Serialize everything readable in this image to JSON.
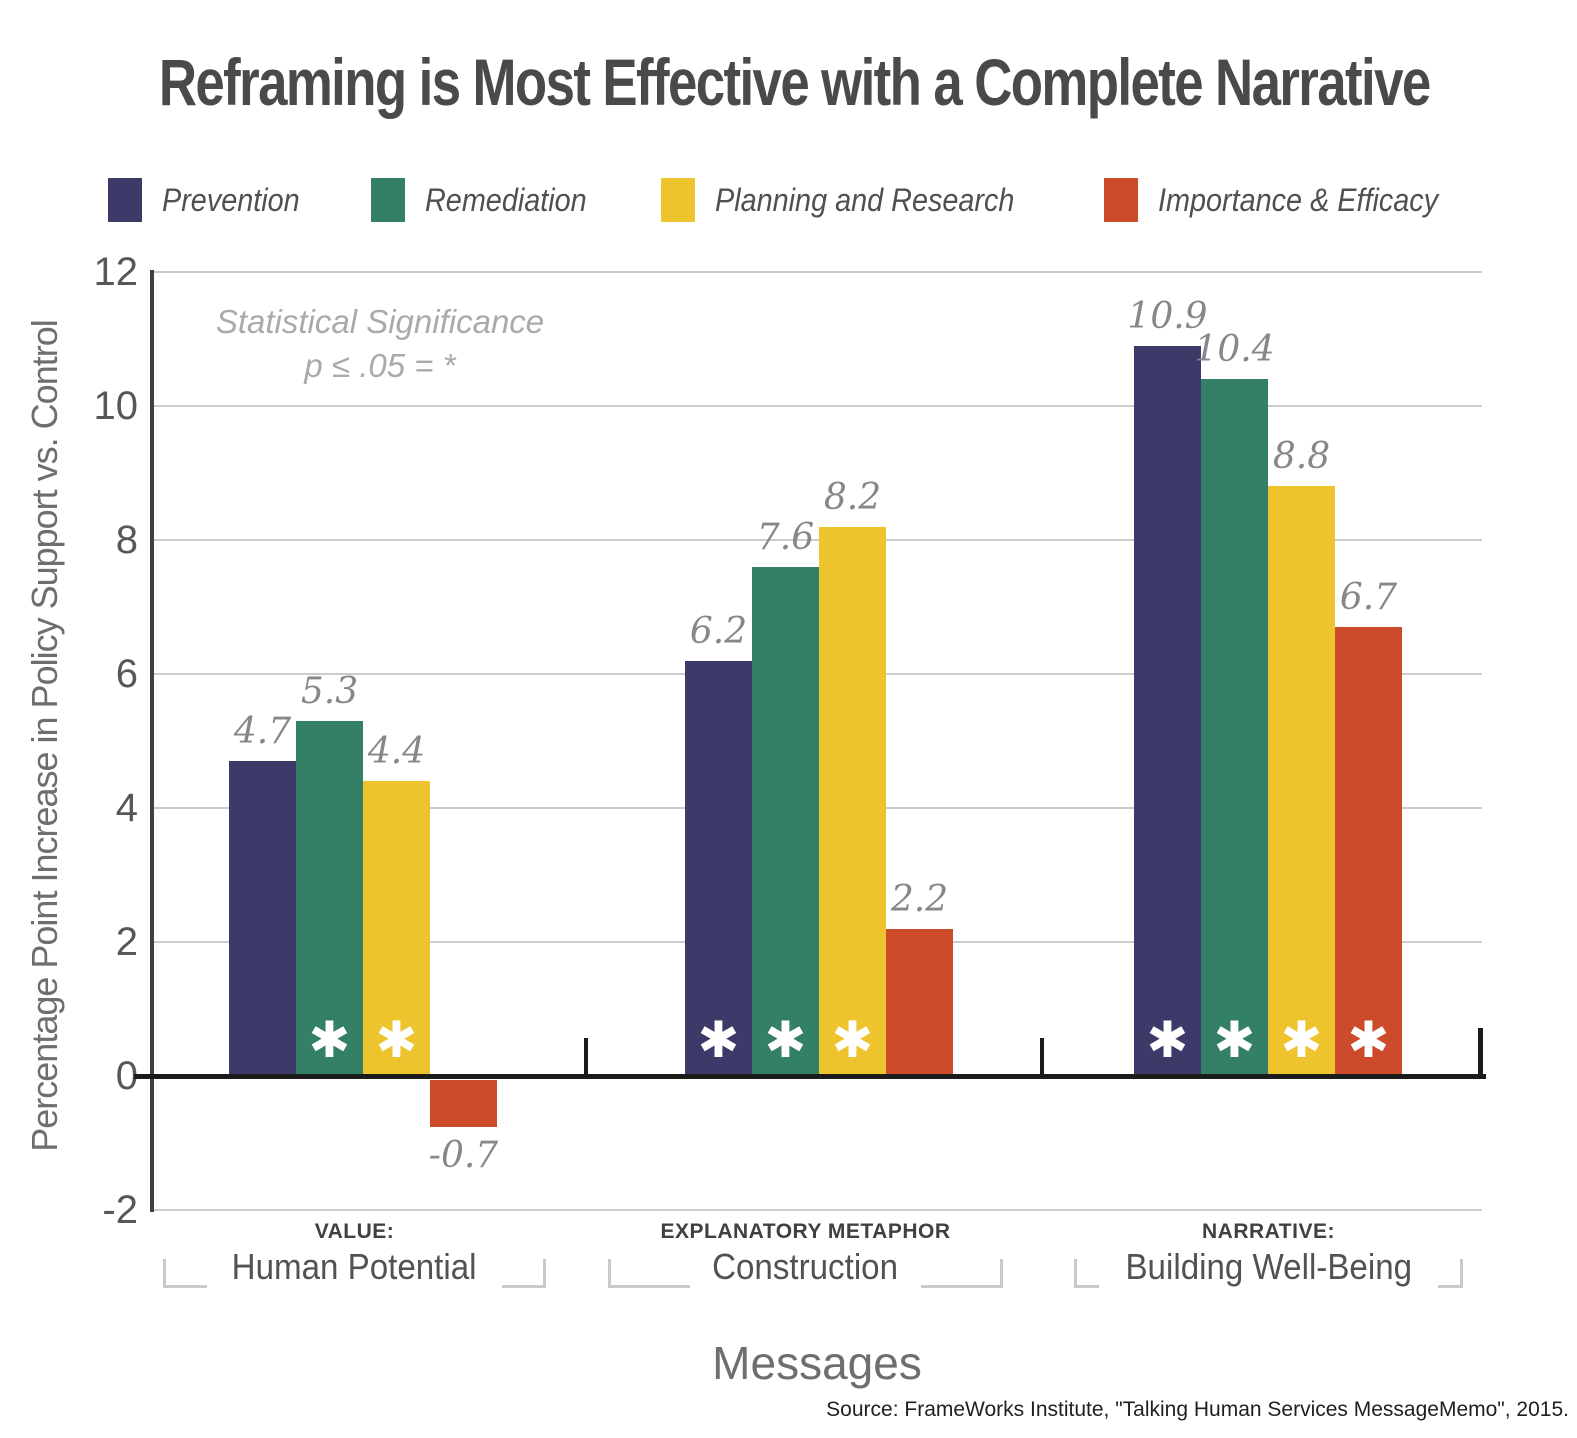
{
  "chart_data": {
    "type": "bar",
    "title": "Reframing is Most Effective with a Complete Narrative",
    "xlabel": "Messages",
    "ylabel": "Percentage Point Increase in Policy Support vs. Control",
    "ylim": [
      -2,
      12
    ],
    "y_ticks": [
      12,
      10,
      8,
      6,
      4,
      2,
      0,
      -2
    ],
    "grid": "horizontal",
    "legend_position": "top",
    "annotation": {
      "line1": "Statistical Significance",
      "line2": "p ≤ .05 = *"
    },
    "significance_marker": "✱",
    "significance_note": "asterisk marks p ≤ .05",
    "categories": [
      {
        "kicker": "VALUE:",
        "label": "Human Potential"
      },
      {
        "kicker": "EXPLANATORY METAPHOR",
        "label": "Construction"
      },
      {
        "kicker": "NARRATIVE:",
        "label": "Building Well-Being"
      }
    ],
    "series": [
      {
        "name": "Prevention",
        "color": "#3c3a68",
        "values": [
          4.7,
          6.2,
          10.9
        ],
        "labels": [
          "4.7",
          "6.2",
          "10.9"
        ],
        "significant": [
          false,
          true,
          true
        ]
      },
      {
        "name": "Remediation",
        "color": "#338066",
        "values": [
          5.3,
          7.6,
          10.4
        ],
        "labels": [
          "5.3",
          "7.6",
          "10.4"
        ],
        "significant": [
          true,
          true,
          true
        ]
      },
      {
        "name": "Planning and Research",
        "color": "#edc32e",
        "values": [
          4.4,
          8.2,
          8.8
        ],
        "labels": [
          "4.4",
          "8.2",
          "8.8"
        ],
        "significant": [
          true,
          true,
          true
        ]
      },
      {
        "name": "Importance & Efficacy",
        "color": "#cc4b2a",
        "values": [
          -0.7,
          2.2,
          6.7
        ],
        "labels": [
          "-0.7",
          "2.2",
          "6.7"
        ],
        "significant": [
          false,
          false,
          true
        ]
      }
    ],
    "source": "Source: FrameWorks Institute, \"Talking Human Services MessageMemo\", 2015."
  }
}
